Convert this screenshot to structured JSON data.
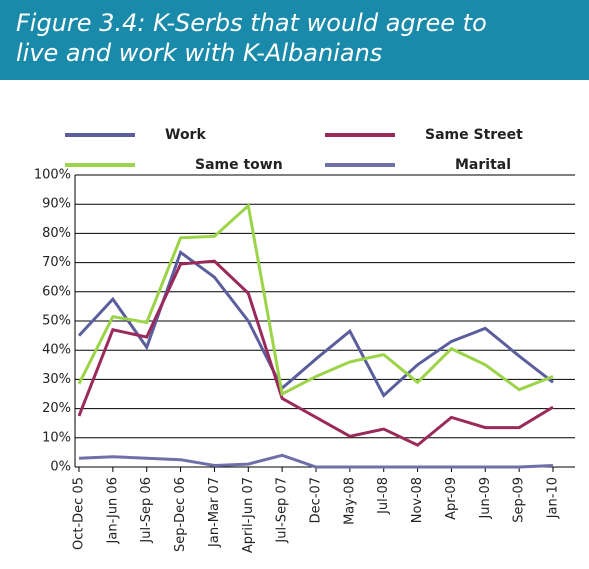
{
  "chart_data": {
    "type": "line",
    "title": "Figure 3.4: K-Serbs that would agree to live and work with K-Albanians",
    "categories": [
      "Oct-Dec 05",
      "Jan-Jun 06",
      "Jul-Sep 06",
      "Sep-Dec 06",
      "Jan-Mar 07",
      "April-Jun 07",
      "Jul-Sep 07",
      "Dec-07",
      "May-08",
      "Jul-08",
      "Nov-08",
      "Apr-09",
      "Jun-09",
      "Sep-09",
      "Jan-10"
    ],
    "series": [
      {
        "name": "Work",
        "color": "#5b5e9c",
        "values": [
          45,
          57.5,
          41,
          73.5,
          65,
          50,
          27,
          37,
          46.5,
          24.5,
          35,
          43,
          47.5,
          38,
          29
        ]
      },
      {
        "name": "Same Street",
        "color": "#9b2a5c",
        "values": [
          17.5,
          47,
          44.5,
          69.5,
          70.5,
          59.5,
          23.5,
          17,
          10.5,
          13,
          7.5,
          17,
          13.5,
          13.5,
          20.5
        ]
      },
      {
        "name": "Same town",
        "color": "#9cd447",
        "values": [
          28.5,
          51.5,
          49.5,
          78.5,
          79,
          89.5,
          25,
          31,
          36,
          38.5,
          29,
          40.5,
          35,
          26.5,
          31
        ]
      },
      {
        "name": "Marital",
        "color": "#6f70aa",
        "values": [
          3,
          3.5,
          3,
          2.5,
          0.5,
          1,
          4,
          0,
          0,
          0,
          0,
          0,
          0,
          0,
          0.5
        ]
      }
    ],
    "ylim": [
      0,
      100
    ],
    "yticks": [
      {
        "value": 0,
        "label": "0%"
      },
      {
        "value": 10,
        "label": "10%"
      },
      {
        "value": 20,
        "label": "20%"
      },
      {
        "value": 30,
        "label": "30%"
      },
      {
        "value": 40,
        "label": "40%"
      },
      {
        "value": 50,
        "label": "50%"
      },
      {
        "value": 60,
        "label": "60%"
      },
      {
        "value": 70,
        "label": "70%"
      },
      {
        "value": 80,
        "label": "80%"
      },
      {
        "value": 90,
        "label": "90%"
      },
      {
        "value": 100,
        "label": "100%"
      }
    ],
    "grid": true
  }
}
